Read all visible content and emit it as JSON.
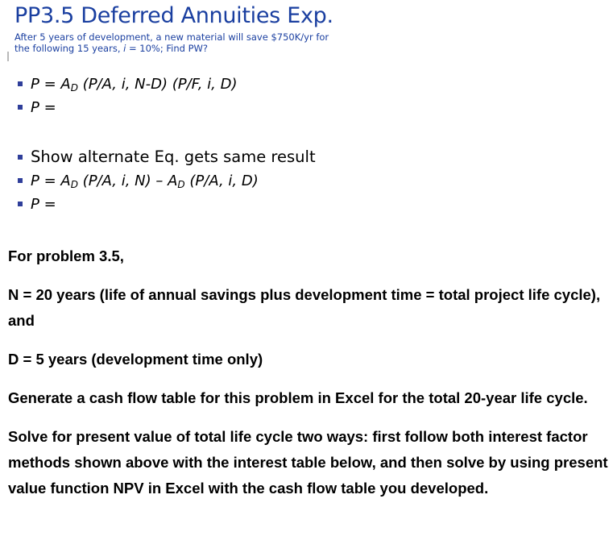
{
  "slide": {
    "title": "PP3.5 Deferred Annuities Exp.",
    "subtitle_line1": "After 5 years of development, a new material will save $750K/yr for",
    "subtitle_line2_a": "the following 15 years, ",
    "subtitle_line2_i": "i",
    "subtitle_line2_b": " = 10%; Find PW?",
    "bullets_a": [
      {
        "pre": "P = A",
        "sub": "D",
        "post": " (P/A, i, N-D) (P/F, i, D)"
      },
      {
        "pre": "P =",
        "sub": "",
        "post": ""
      }
    ],
    "bullets_b": [
      {
        "text": "Show alternate Eq. gets same result"
      },
      {
        "pre": "P = A",
        "sub": "D",
        "mid": " (P/A, i, N) – A",
        "sub2": "D",
        "post": " (P/A, i, D)"
      },
      {
        "pre": "P =",
        "sub": "",
        "mid": "",
        "sub2": "",
        "post": ""
      }
    ]
  },
  "problem": {
    "p1": "For problem 3.5,",
    "p2": "N = 20 years (life of annual savings plus development time = total project life cycle), and",
    "p3": "D = 5 years (development time only)",
    "p4": "Generate a cash flow table for this problem in Excel for the total 20-year life cycle.",
    "p5": "Solve for present value of total life cycle two ways: first follow both interest factor methods shown above with the interest table below,  and then solve by using present value function NPV in Excel with the cash flow table you developed."
  },
  "colors": {
    "title_blue": "#1a3fa0",
    "bullet_square": "#2f3e9a"
  }
}
